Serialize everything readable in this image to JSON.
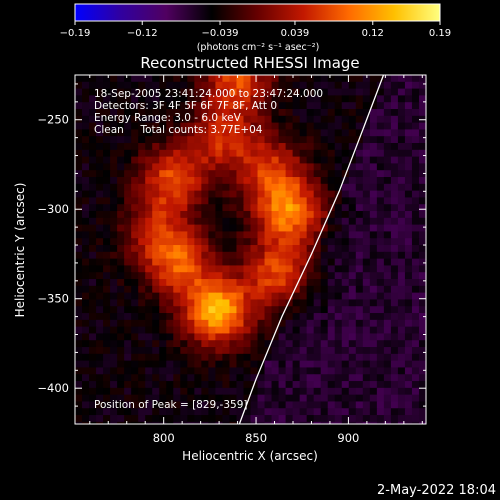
{
  "chart_data": {
    "type": "heatmap",
    "title": "Reconstructed RHESSI Image",
    "xlabel": "Heliocentric X (arcsec)",
    "ylabel": "Heliocentric Y (arcsec)",
    "xlim": [
      752,
      942
    ],
    "ylim": [
      -420,
      -225
    ],
    "xticks": [
      800,
      850,
      900
    ],
    "yticks": [
      -400,
      -350,
      -300,
      -250
    ],
    "colorbar": {
      "range": [
        -0.19,
        0.19
      ],
      "ticks": [
        -0.19,
        -0.12,
        -0.039,
        0.039,
        0.12,
        0.19
      ],
      "tick_labels": [
        "−0.19",
        "−0.12",
        "−0.039",
        "0.039",
        "0.12",
        "0.19"
      ],
      "unit_label": "(photons cm⁻² s⁻¹ asec⁻²)",
      "colormap": [
        "#0000ff",
        "#3000a0",
        "#500060",
        "#000000",
        "#660000",
        "#c21800",
        "#ff6a00",
        "#ffc000",
        "#ffff80"
      ]
    },
    "annotations": [
      "18-Sep-2005 23:41:24.000 to 23:47:24.000",
      "Detectors: 3F 4F 5F 6F 7F 8F, Att 0",
      "Energy Range: 3.0 - 6.0 keV",
      "Clean     Total counts: 3.77E+04"
    ],
    "peak_label": "Position of Peak = [829,-359]",
    "peak": {
      "x": 829,
      "y": -359,
      "value": 0.19
    },
    "emission_sources": [
      {
        "x": 829,
        "y": -357,
        "amplitude": 0.19
      },
      {
        "x": 808,
        "y": -330,
        "amplitude": 0.12
      },
      {
        "x": 862,
        "y": -336,
        "amplitude": 0.12
      },
      {
        "x": 868,
        "y": -302,
        "amplitude": 0.15
      },
      {
        "x": 858,
        "y": -278,
        "amplitude": 0.1
      },
      {
        "x": 805,
        "y": -283,
        "amplitude": 0.12
      },
      {
        "x": 795,
        "y": -312,
        "amplitude": 0.08
      },
      {
        "x": 832,
        "y": -260,
        "amplitude": 0.1
      },
      {
        "x": 840,
        "y": -228,
        "amplitude": 0.12
      }
    ],
    "limb": [
      [
        919,
        -225
      ],
      [
        908,
        -255
      ],
      [
        895,
        -290
      ],
      [
        880,
        -325
      ],
      [
        864,
        -360
      ],
      [
        850,
        -395
      ],
      [
        841,
        -420
      ]
    ],
    "background_level": -0.05
  },
  "footer_timestamp": "2-May-2022 18:04"
}
